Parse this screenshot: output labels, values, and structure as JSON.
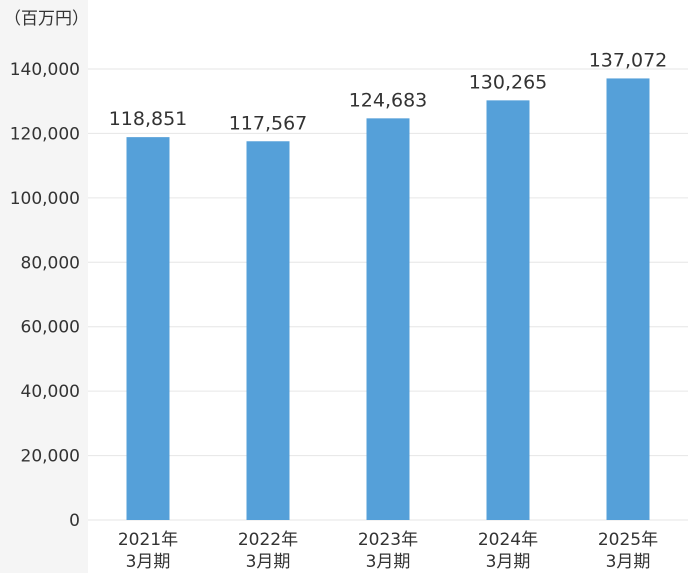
{
  "colors": {
    "bar": "#55a0d9",
    "grid": "#e6e6e6",
    "axis_panel": "#f5f5f5",
    "text": "#333333"
  },
  "chart_data": {
    "type": "bar",
    "unit_label": "（百万円）",
    "categories": [
      [
        "2021年",
        "3月期"
      ],
      [
        "2022年",
        "3月期"
      ],
      [
        "2023年",
        "3月期"
      ],
      [
        "2024年",
        "3月期"
      ],
      [
        "2025年",
        "3月期"
      ]
    ],
    "values": [
      118851,
      117567,
      124683,
      130265,
      137072
    ],
    "value_labels": [
      "118,851",
      "117,567",
      "124,683",
      "130,265",
      "137,072"
    ],
    "ylim": [
      0,
      140000
    ],
    "yticks": [
      0,
      20000,
      40000,
      60000,
      80000,
      100000,
      120000,
      140000
    ],
    "ytick_labels": [
      "0",
      "20,000",
      "40,000",
      "60,000",
      "80,000",
      "100,000",
      "120,000",
      "140,000"
    ],
    "grid": true,
    "legend": "none"
  }
}
